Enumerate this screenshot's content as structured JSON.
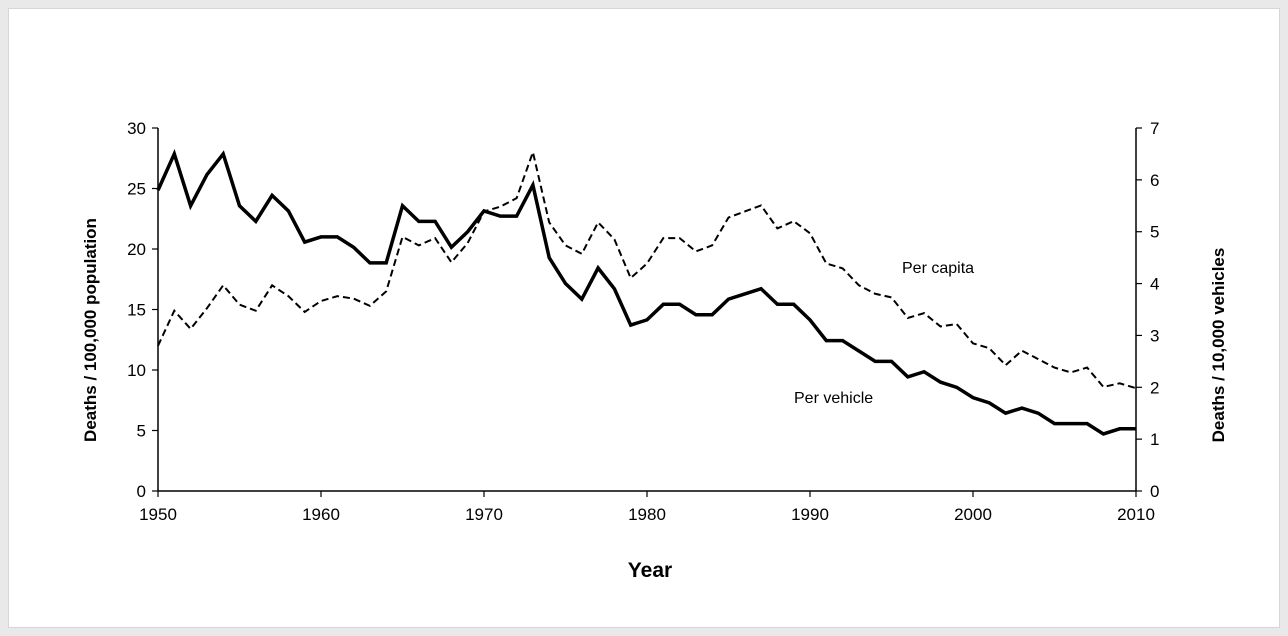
{
  "chart_data": {
    "type": "line",
    "xlabel": "Year",
    "ylabel_left": "Deaths / 100,000 population",
    "ylabel_right": "Deaths / 10,000 vehicles",
    "xlim": [
      1950,
      2010
    ],
    "xticks": [
      "1950",
      "1960",
      "1970",
      "1980",
      "1990",
      "2000",
      "2010"
    ],
    "ylim_left": [
      0,
      30
    ],
    "yticks_left": [
      "0",
      "5",
      "10",
      "15",
      "20",
      "25",
      "30"
    ],
    "ylim_right": [
      0,
      7
    ],
    "yticks_right": [
      "0",
      "1",
      "2",
      "3",
      "4",
      "5",
      "6",
      "7"
    ],
    "grid": false,
    "legend": "none",
    "x": [
      1950,
      1951,
      1952,
      1953,
      1954,
      1955,
      1956,
      1957,
      1958,
      1959,
      1960,
      1961,
      1962,
      1963,
      1964,
      1965,
      1966,
      1967,
      1968,
      1969,
      1970,
      1971,
      1972,
      1973,
      1974,
      1975,
      1976,
      1977,
      1978,
      1979,
      1980,
      1981,
      1982,
      1983,
      1984,
      1985,
      1986,
      1987,
      1988,
      1989,
      1990,
      1991,
      1992,
      1993,
      1994,
      1995,
      1996,
      1997,
      1998,
      1999,
      2000,
      2001,
      2002,
      2003,
      2004,
      2005,
      2006,
      2007,
      2008,
      2009,
      2010
    ],
    "series": [
      {
        "axis": "left",
        "style": "dashed",
        "label": "Per capita",
        "values": [
          12.0,
          14.9,
          13.4,
          15.1,
          17.0,
          15.4,
          14.9,
          17.0,
          16.1,
          14.8,
          15.7,
          16.1,
          15.9,
          15.3,
          16.5,
          21.0,
          20.3,
          20.9,
          18.9,
          20.5,
          23.1,
          23.5,
          24.2,
          28.0,
          22.2,
          20.3,
          19.6,
          22.2,
          20.8,
          17.6,
          18.8,
          20.9,
          20.9,
          19.8,
          20.3,
          22.6,
          23.1,
          23.6,
          21.7,
          22.3,
          21.3,
          18.8,
          18.4,
          17.0,
          16.3,
          16.0,
          14.3,
          14.7,
          13.6,
          13.8,
          12.2,
          11.8,
          10.4,
          11.6,
          10.9,
          10.2,
          9.8,
          10.2,
          8.6,
          8.9,
          8.5
        ]
      },
      {
        "axis": "right",
        "style": "solid",
        "label": "Per vehicle",
        "values": [
          5.8,
          6.5,
          5.5,
          6.1,
          6.5,
          5.5,
          5.2,
          5.7,
          5.4,
          4.8,
          4.9,
          4.9,
          4.7,
          4.4,
          4.4,
          5.5,
          5.2,
          5.2,
          4.7,
          5.0,
          5.4,
          5.3,
          5.3,
          5.9,
          4.5,
          4.0,
          3.7,
          4.3,
          3.9,
          3.2,
          3.3,
          3.6,
          3.6,
          3.4,
          3.4,
          3.7,
          3.8,
          3.9,
          3.6,
          3.6,
          3.3,
          2.9,
          2.9,
          2.7,
          2.5,
          2.5,
          2.2,
          2.3,
          2.1,
          2.0,
          1.8,
          1.7,
          1.5,
          1.6,
          1.5,
          1.3,
          1.3,
          1.3,
          1.1,
          1.2,
          1.2
        ]
      }
    ]
  }
}
